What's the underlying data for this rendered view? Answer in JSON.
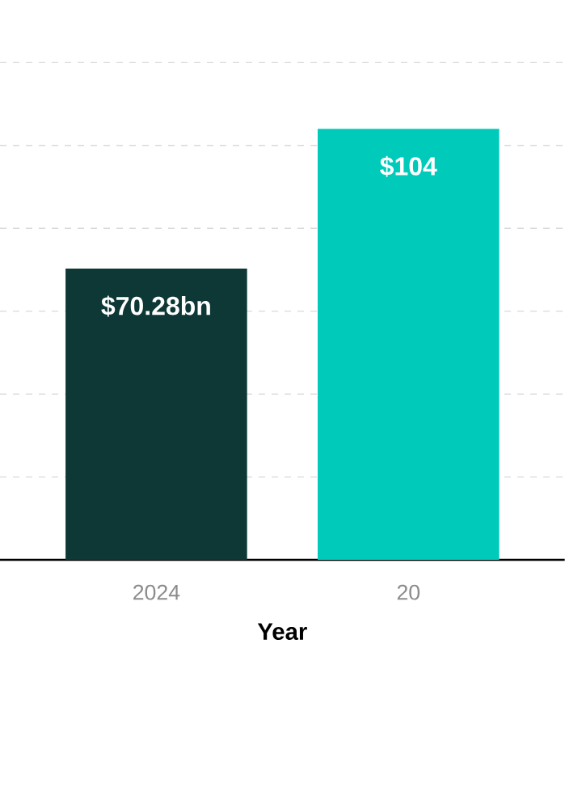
{
  "chart_data": {
    "type": "bar",
    "xlabel": "Year",
    "categories": [
      "2024",
      "20"
    ],
    "values": [
      70.28,
      104
    ],
    "colors": [
      "#0d3835",
      "#00cbbb"
    ],
    "value_labels": [
      "$70.28bn",
      "$104"
    ],
    "grid": "y",
    "tick_labels": "x"
  }
}
